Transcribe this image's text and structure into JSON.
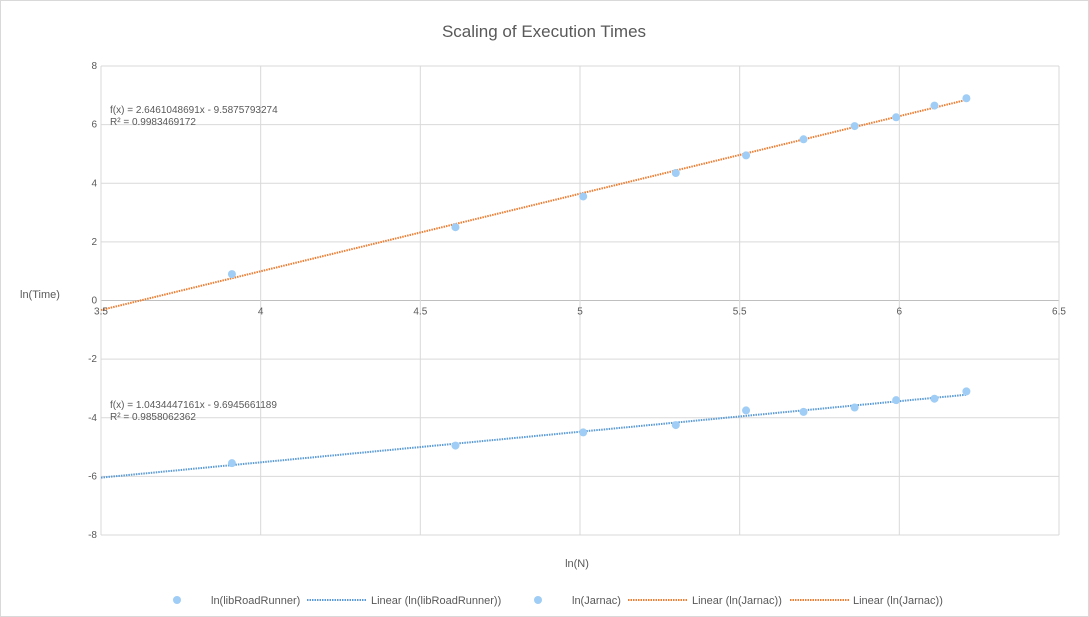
{
  "chart_data": {
    "type": "scatter",
    "title": "Scaling of Execution Times",
    "xlabel": "ln(N)",
    "ylabel": "ln(Time)",
    "xlim": [
      3.5,
      6.5
    ],
    "ylim": [
      -8,
      8
    ],
    "xticks": [
      "3.5",
      "4",
      "4.5",
      "5",
      "5.5",
      "6",
      "6.5"
    ],
    "yticks": [
      "8",
      "6",
      "4",
      "2",
      "0",
      "-2",
      "-4",
      "-6",
      "-8"
    ],
    "grid": true,
    "legend_position": "bottom",
    "series": [
      {
        "name": "ln(libRoadRunner)",
        "kind": "scatter",
        "color": "#9fcdf5",
        "x": [
          3.91,
          4.61,
          5.01,
          5.3,
          5.52,
          5.7,
          5.86,
          5.99,
          6.11,
          6.21
        ],
        "y": [
          -5.55,
          -4.95,
          -4.5,
          -4.25,
          -3.75,
          -3.8,
          -3.65,
          -3.4,
          -3.35,
          -3.1
        ]
      },
      {
        "name": "ln(Jarnac)",
        "kind": "scatter",
        "color": "#9fcdf5",
        "x": [
          3.91,
          4.61,
          5.01,
          5.3,
          5.52,
          5.7,
          5.86,
          5.99,
          6.11,
          6.21
        ],
        "y": [
          0.9,
          2.5,
          3.55,
          4.35,
          4.95,
          5.5,
          5.95,
          6.25,
          6.65,
          6.9
        ]
      }
    ],
    "trendlines": [
      {
        "name": "Linear (ln(libRoadRunner))",
        "color": "#5b9bd5",
        "slope": 1.0434447161,
        "intercept": -9.6945661189,
        "x_range": [
          3.5,
          6.21
        ],
        "equation": "f(x) = 1.0434447161x - 9.6945661189",
        "r2": "R² = 0.9858062362"
      },
      {
        "name": "Linear (ln(Jarnac))",
        "color": "#ed7d31",
        "slope": 2.6461048691,
        "intercept": -9.5875793274,
        "x_range": [
          3.5,
          6.21
        ],
        "equation": "f(x) = 2.6461048691x - 9.5875793274",
        "r2": "R² = 0.9983469172"
      }
    ],
    "legend": [
      {
        "label": "ln(libRoadRunner)",
        "marker": "dot",
        "color": "#9fcdf5"
      },
      {
        "label": "Linear (ln(libRoadRunner))",
        "marker": "line",
        "color": "#5b9bd5"
      },
      {
        "label": "ln(Jarnac)",
        "marker": "dot",
        "color": "#9fcdf5"
      },
      {
        "label": "Linear (ln(Jarnac))",
        "marker": "line",
        "color": "#ed7d31"
      },
      {
        "label": "Linear (ln(Jarnac))",
        "marker": "line",
        "color": "#ed7d31"
      }
    ]
  }
}
